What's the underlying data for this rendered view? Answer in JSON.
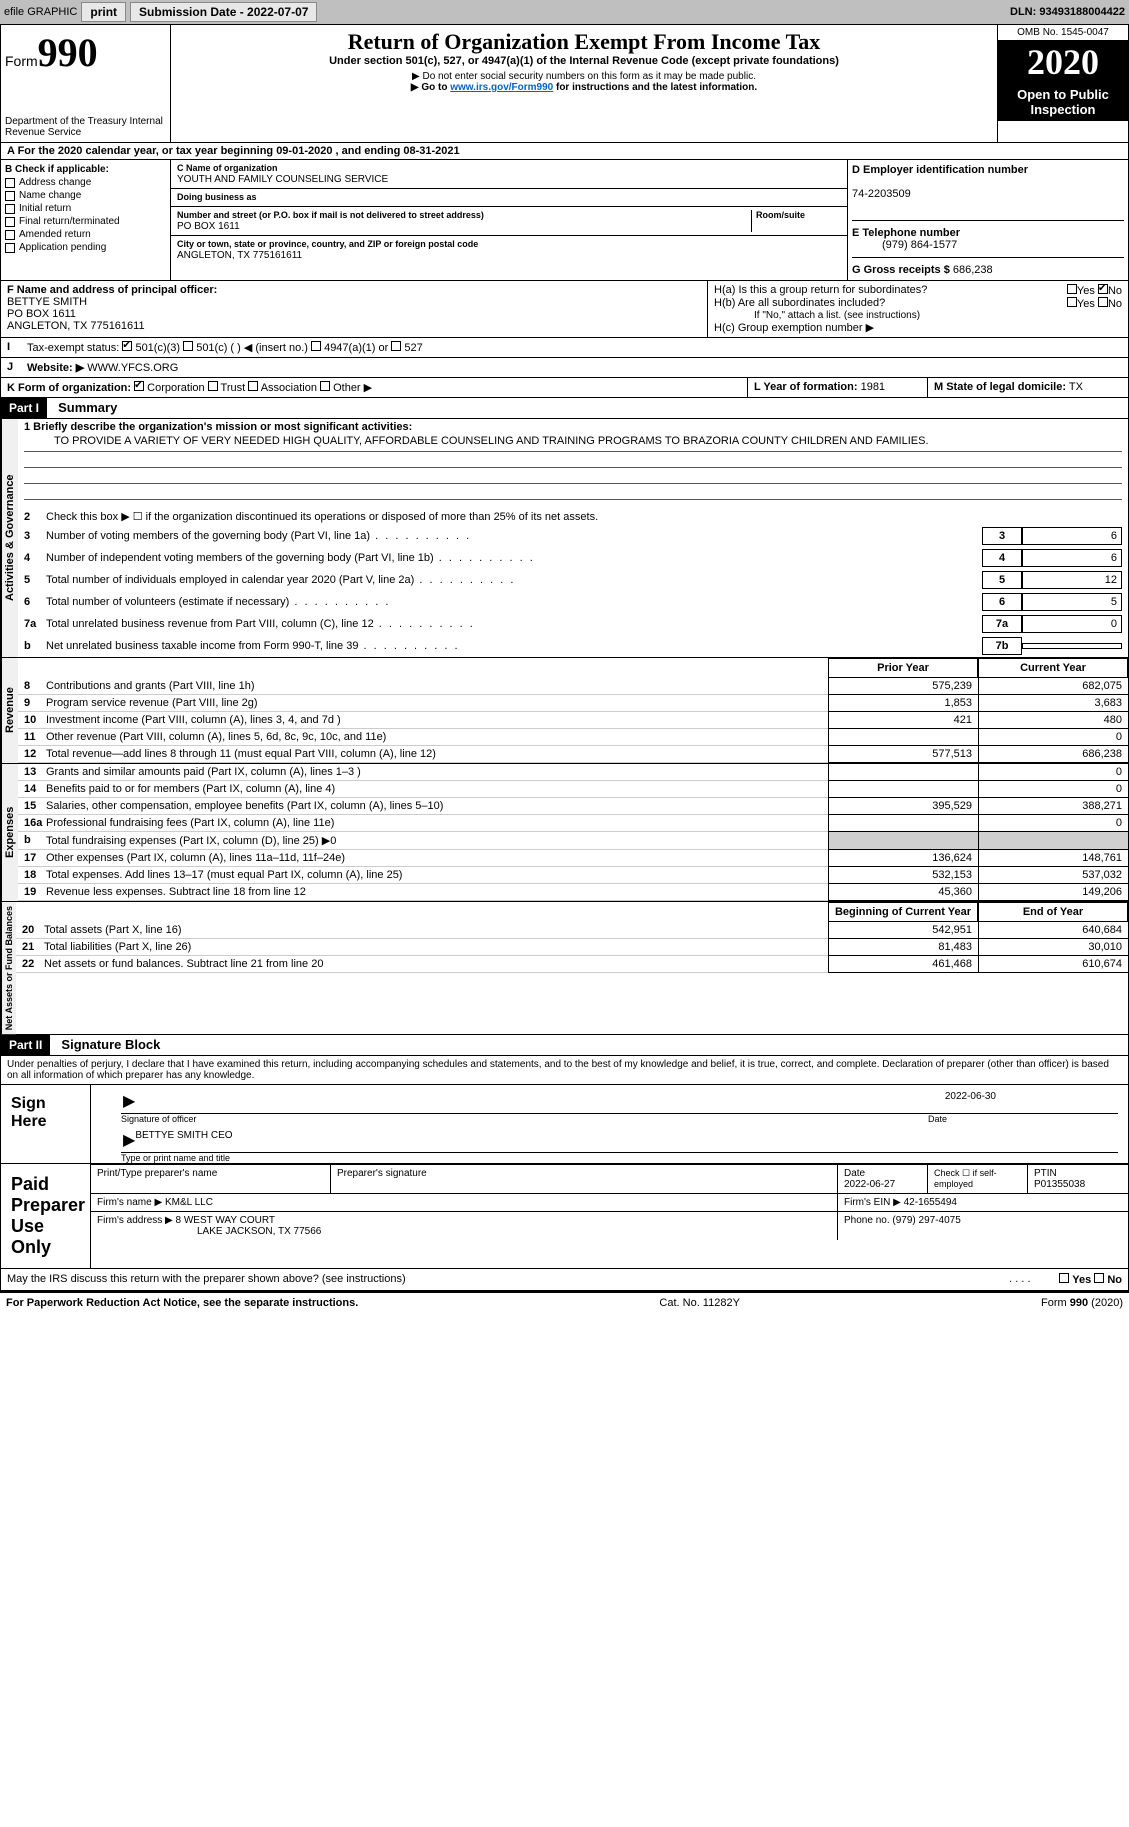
{
  "topbar": {
    "efile": "efile GRAPHIC",
    "print": "print",
    "sub_label": "Submission Date - 2022-07-07",
    "dln": "DLN: 93493188004422"
  },
  "header": {
    "form_word": "Form",
    "form_num": "990",
    "dept": "Department of the Treasury\nInternal Revenue Service",
    "title": "Return of Organization Exempt From Income Tax",
    "subtitle": "Under section 501(c), 527, or 4947(a)(1) of the Internal Revenue Code (except private foundations)",
    "note1": "▶ Do not enter social security numbers on this form as it may be made public.",
    "note2_pre": "▶ Go to ",
    "note2_link": "www.irs.gov/Form990",
    "note2_post": " for instructions and the latest information.",
    "omb": "OMB No. 1545-0047",
    "year": "2020",
    "inspection": "Open to Public Inspection"
  },
  "section_a": "A For the 2020 calendar year, or tax year beginning 09-01-2020   , and ending 08-31-2021",
  "section_b": {
    "label": "B Check if applicable:",
    "items": [
      "Address change",
      "Name change",
      "Initial return",
      "Final return/terminated",
      "Amended return",
      "Application pending"
    ]
  },
  "section_c": {
    "name_label": "C Name of organization",
    "name": "YOUTH AND FAMILY COUNSELING SERVICE",
    "dba_label": "Doing business as",
    "addr_label": "Number and street (or P.O. box if mail is not delivered to street address)",
    "room_label": "Room/suite",
    "addr": "PO BOX 1611",
    "city_label": "City or town, state or province, country, and ZIP or foreign postal code",
    "city": "ANGLETON, TX  775161611"
  },
  "section_d": {
    "label": "D Employer identification number",
    "value": "74-2203509"
  },
  "section_e": {
    "label": "E Telephone number",
    "value": "(979) 864-1577"
  },
  "section_g": {
    "label": "G Gross receipts $",
    "value": "686,238"
  },
  "section_f": {
    "label": "F Name and address of principal officer:",
    "name": "BETTYE SMITH",
    "addr1": "PO BOX 1611",
    "addr2": "ANGLETON, TX  775161611"
  },
  "section_h": {
    "a": "H(a)  Is this a group return for subordinates?",
    "b": "H(b)  Are all subordinates included?",
    "b_note": "If \"No,\" attach a list. (see instructions)",
    "c": "H(c)  Group exemption number ▶",
    "yes": "Yes",
    "no": "No"
  },
  "section_i": {
    "label": "Tax-exempt status:",
    "opts": [
      "501(c)(3)",
      "501(c) (  ) ◀ (insert no.)",
      "4947(a)(1) or",
      "527"
    ]
  },
  "section_j": {
    "label": "Website: ▶",
    "value": "WWW.YFCS.ORG"
  },
  "section_k": {
    "label": "K Form of organization:",
    "opts": [
      "Corporation",
      "Trust",
      "Association",
      "Other ▶"
    ]
  },
  "section_l": {
    "label": "L Year of formation:",
    "value": "1981"
  },
  "section_m": {
    "label": "M State of legal domicile:",
    "value": "TX"
  },
  "part1": {
    "header": "Part I",
    "title": "Summary",
    "sidebar1": "Activities & Governance",
    "sidebar2": "Revenue",
    "sidebar3": "Expenses",
    "sidebar4": "Net Assets or Fund Balances",
    "line1_label": "1 Briefly describe the organization's mission or most significant activities:",
    "line1_text": "TO PROVIDE A VARIETY OF VERY NEEDED HIGH QUALITY, AFFORDABLE COUNSELING AND TRAINING PROGRAMS TO BRAZORIA COUNTY CHILDREN AND FAMILIES.",
    "line2": "Check this box ▶ ☐ if the organization discontinued its operations or disposed of more than 25% of its net assets.",
    "gov_lines": [
      {
        "n": "3",
        "t": "Number of voting members of the governing body (Part VI, line 1a)",
        "box": "3",
        "v": "6"
      },
      {
        "n": "4",
        "t": "Number of independent voting members of the governing body (Part VI, line 1b)",
        "box": "4",
        "v": "6"
      },
      {
        "n": "5",
        "t": "Total number of individuals employed in calendar year 2020 (Part V, line 2a)",
        "box": "5",
        "v": "12"
      },
      {
        "n": "6",
        "t": "Total number of volunteers (estimate if necessary)",
        "box": "6",
        "v": "5"
      },
      {
        "n": "7a",
        "t": "Total unrelated business revenue from Part VIII, column (C), line 12",
        "box": "7a",
        "v": "0"
      },
      {
        "n": "b",
        "t": "Net unrelated business taxable income from Form 990-T, line 39",
        "box": "7b",
        "v": ""
      }
    ],
    "col_prior": "Prior Year",
    "col_current": "Current Year",
    "rev_lines": [
      {
        "n": "8",
        "t": "Contributions and grants (Part VIII, line 1h)",
        "p": "575,239",
        "c": "682,075"
      },
      {
        "n": "9",
        "t": "Program service revenue (Part VIII, line 2g)",
        "p": "1,853",
        "c": "3,683"
      },
      {
        "n": "10",
        "t": "Investment income (Part VIII, column (A), lines 3, 4, and 7d )",
        "p": "421",
        "c": "480"
      },
      {
        "n": "11",
        "t": "Other revenue (Part VIII, column (A), lines 5, 6d, 8c, 9c, 10c, and 11e)",
        "p": "",
        "c": "0"
      },
      {
        "n": "12",
        "t": "Total revenue—add lines 8 through 11 (must equal Part VIII, column (A), line 12)",
        "p": "577,513",
        "c": "686,238"
      }
    ],
    "exp_lines": [
      {
        "n": "13",
        "t": "Grants and similar amounts paid (Part IX, column (A), lines 1–3 )",
        "p": "",
        "c": "0"
      },
      {
        "n": "14",
        "t": "Benefits paid to or for members (Part IX, column (A), line 4)",
        "p": "",
        "c": "0"
      },
      {
        "n": "15",
        "t": "Salaries, other compensation, employee benefits (Part IX, column (A), lines 5–10)",
        "p": "395,529",
        "c": "388,271"
      },
      {
        "n": "16a",
        "t": "Professional fundraising fees (Part IX, column (A), line 11e)",
        "p": "",
        "c": "0"
      },
      {
        "n": "b",
        "t": "Total fundraising expenses (Part IX, column (D), line 25) ▶0",
        "p": "shade",
        "c": "shade"
      },
      {
        "n": "17",
        "t": "Other expenses (Part IX, column (A), lines 11a–11d, 11f–24e)",
        "p": "136,624",
        "c": "148,761"
      },
      {
        "n": "18",
        "t": "Total expenses. Add lines 13–17 (must equal Part IX, column (A), line 25)",
        "p": "532,153",
        "c": "537,032"
      },
      {
        "n": "19",
        "t": "Revenue less expenses. Subtract line 18 from line 12",
        "p": "45,360",
        "c": "149,206"
      }
    ],
    "col_begin": "Beginning of Current Year",
    "col_end": "End of Year",
    "net_lines": [
      {
        "n": "20",
        "t": "Total assets (Part X, line 16)",
        "p": "542,951",
        "c": "640,684"
      },
      {
        "n": "21",
        "t": "Total liabilities (Part X, line 26)",
        "p": "81,483",
        "c": "30,010"
      },
      {
        "n": "22",
        "t": "Net assets or fund balances. Subtract line 21 from line 20",
        "p": "461,468",
        "c": "610,674"
      }
    ]
  },
  "part2": {
    "header": "Part II",
    "title": "Signature Block",
    "penalty": "Under penalties of perjury, I declare that I have examined this return, including accompanying schedules and statements, and to the best of my knowledge and belief, it is true, correct, and complete. Declaration of preparer (other than officer) is based on all information of which preparer has any knowledge.",
    "sign_here": "Sign Here",
    "sig_officer": "Signature of officer",
    "date": "Date",
    "sig_date": "2022-06-30",
    "name_title": "BETTYE SMITH CEO",
    "type_name": "Type or print name and title",
    "paid_prep": "Paid Preparer Use Only",
    "prep_name_label": "Print/Type preparer's name",
    "prep_sig_label": "Preparer's signature",
    "prep_date_label": "Date",
    "prep_date": "2022-06-27",
    "check_label": "Check ☐ if self-employed",
    "ptin_label": "PTIN",
    "ptin": "P01355038",
    "firm_name_label": "Firm's name    ▶",
    "firm_name": "KM&L LLC",
    "firm_ein_label": "Firm's EIN ▶",
    "firm_ein": "42-1655494",
    "firm_addr_label": "Firm's address ▶",
    "firm_addr": "8 WEST WAY COURT",
    "firm_city": "LAKE JACKSON, TX  77566",
    "phone_label": "Phone no.",
    "phone": "(979) 297-4075",
    "discuss": "May the IRS discuss this return with the preparer shown above? (see instructions)"
  },
  "footer": {
    "left": "For Paperwork Reduction Act Notice, see the separate instructions.",
    "mid": "Cat. No. 11282Y",
    "right": "Form 990 (2020)"
  }
}
